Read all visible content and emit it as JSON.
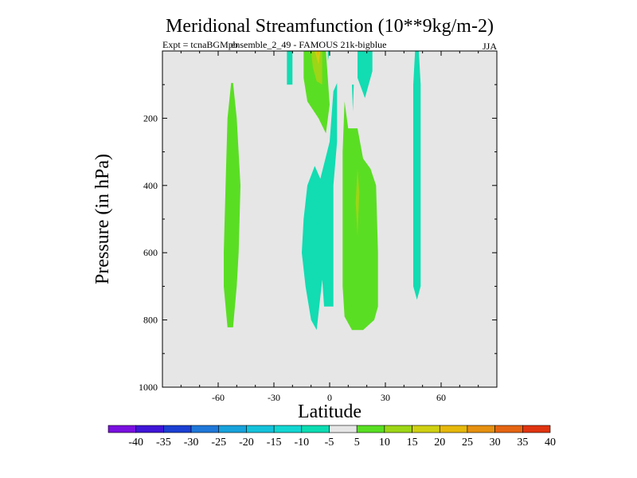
{
  "chart_data": {
    "type": "contour",
    "title": "Meridional Streamfunction (10**9kg/m-2)",
    "subtitle_left": "Expt = tcnaBGMpb",
    "subtitle_overlay": "ensemble_2_49 - FAMOUS 21k-bigblue",
    "season": "JJA",
    "xlabel": "Latitude",
    "ylabel": "Pressure (in hPa)",
    "xlim": [
      -90,
      90
    ],
    "ylim": [
      1000,
      0
    ],
    "x_ticks": [
      -60,
      -30,
      0,
      30,
      60
    ],
    "x_tick_labels": [
      "-60",
      "-30",
      "0",
      "30",
      "60"
    ],
    "y_ticks": [
      200,
      400,
      600,
      800,
      1000
    ],
    "y_tick_labels": [
      "200",
      "400",
      "600",
      "800",
      "1000"
    ],
    "colorbar": {
      "levels": [
        "-40",
        "-35",
        "-30",
        "-25",
        "-20",
        "-15",
        "-10",
        "-5",
        "5",
        "10",
        "15",
        "20",
        "25",
        "30",
        "35",
        "40"
      ],
      "colors": [
        "#7a10e0",
        "#3f15d8",
        "#1a3fd2",
        "#1f78d8",
        "#18a2dc",
        "#14c2dc",
        "#12d6d2",
        "#0cdcb2",
        "#e6e6e6",
        "#58de22",
        "#9cd616",
        "#cfd012",
        "#e6b80c",
        "#e69010",
        "#e46412",
        "#e03410"
      ]
    },
    "regions": [
      {
        "name": "cell-55S",
        "level_class": "5 to 10",
        "color": "#5ade23",
        "points": [
          [
            -52,
            95
          ],
          [
            -50,
            200
          ],
          [
            -48,
            400
          ],
          [
            -49,
            600
          ],
          [
            -50,
            700
          ],
          [
            -52,
            822
          ],
          [
            -55,
            822
          ],
          [
            -57,
            700
          ],
          [
            -57,
            600
          ],
          [
            -56,
            400
          ],
          [
            -55,
            200
          ],
          [
            -53,
            95
          ]
        ]
      },
      {
        "name": "cell-10S-upper",
        "level_class": "5 to 10",
        "color": "#5ade23",
        "points": [
          [
            -14,
            0
          ],
          [
            -2,
            0
          ],
          [
            0,
            160
          ],
          [
            -2,
            245
          ],
          [
            -6,
            200
          ],
          [
            -12,
            150
          ],
          [
            -14,
            80
          ]
        ]
      },
      {
        "name": "cell-10S-core",
        "level_class": "10 to 15",
        "color": "#9cd616",
        "points": [
          [
            -10,
            0
          ],
          [
            -4,
            0
          ],
          [
            -4,
            100
          ],
          [
            -7,
            90
          ],
          [
            -9,
            50
          ]
        ]
      },
      {
        "name": "cell-10S-peak",
        "level_class": "15 to 20",
        "color": "#cfd012",
        "points": [
          [
            -8,
            0
          ],
          [
            -5,
            0
          ],
          [
            -6,
            40
          ]
        ]
      },
      {
        "name": "cell-10S-max",
        "level_class": "20 to 25",
        "color": "#e6b80c",
        "points": [
          [
            -7,
            0
          ],
          [
            -5.5,
            0
          ],
          [
            -6.3,
            15
          ]
        ]
      },
      {
        "name": "cell-equator-neg",
        "level_class": "-5 to -10",
        "color": "#12dcb2",
        "points": [
          [
            -8,
            342
          ],
          [
            -5,
            380
          ],
          [
            0,
            270
          ],
          [
            2,
            120
          ],
          [
            4,
            95
          ],
          [
            4,
            270
          ],
          [
            2,
            400
          ],
          [
            2,
            650
          ],
          [
            2,
            760
          ],
          [
            -3,
            760
          ],
          [
            -4,
            680
          ],
          [
            -7,
            830
          ],
          [
            -10,
            800
          ],
          [
            -13,
            700
          ],
          [
            -15,
            600
          ],
          [
            -14,
            500
          ],
          [
            -12,
            400
          ]
        ]
      },
      {
        "name": "cell-topneg-a",
        "level_class": "-5 to -10",
        "color": "#12dcb2",
        "points": [
          [
            -23,
            0
          ],
          [
            -20,
            0
          ],
          [
            -20,
            100
          ],
          [
            -23,
            100
          ]
        ]
      },
      {
        "name": "cell-topneg-b",
        "level_class": "-5 to -10",
        "color": "#12dcb2",
        "points": [
          [
            -1,
            0
          ],
          [
            0,
            0
          ],
          [
            -1,
            30
          ]
        ]
      },
      {
        "name": "cell-topneg-c",
        "level_class": "-5 to -10",
        "color": "#12dcb2",
        "points": [
          [
            15,
            0
          ],
          [
            23,
            0
          ],
          [
            23,
            60
          ],
          [
            19,
            140
          ],
          [
            15,
            80
          ]
        ]
      },
      {
        "name": "cell-topneg-d",
        "level_class": "-5 to -10",
        "color": "#12dcb2",
        "points": [
          [
            12,
            100
          ],
          [
            13,
            100
          ],
          [
            12.5,
            180
          ]
        ]
      },
      {
        "name": "cell-15N",
        "level_class": "5 to 10",
        "color": "#5ade23",
        "points": [
          [
            8,
            150
          ],
          [
            10,
            230
          ],
          [
            15,
            230
          ],
          [
            18,
            320
          ],
          [
            22,
            350
          ],
          [
            25,
            400
          ],
          [
            26,
            600
          ],
          [
            26,
            760
          ],
          [
            24,
            800
          ],
          [
            18,
            830
          ],
          [
            12,
            830
          ],
          [
            8,
            790
          ],
          [
            7,
            700
          ],
          [
            7,
            500
          ],
          [
            7,
            300
          ]
        ]
      },
      {
        "name": "cell-15N-core",
        "level_class": "10 to 15",
        "color": "#9cd616",
        "points": [
          [
            15,
            350
          ],
          [
            16,
            420
          ],
          [
            15,
            550
          ],
          [
            14,
            450
          ]
        ]
      },
      {
        "name": "cell-48N",
        "level_class": "-5 to -10",
        "color": "#12dcb2",
        "points": [
          [
            46,
            0
          ],
          [
            48,
            0
          ],
          [
            49,
            100
          ],
          [
            49,
            700
          ],
          [
            47,
            740
          ],
          [
            45,
            700
          ],
          [
            45,
            100
          ]
        ]
      }
    ]
  }
}
